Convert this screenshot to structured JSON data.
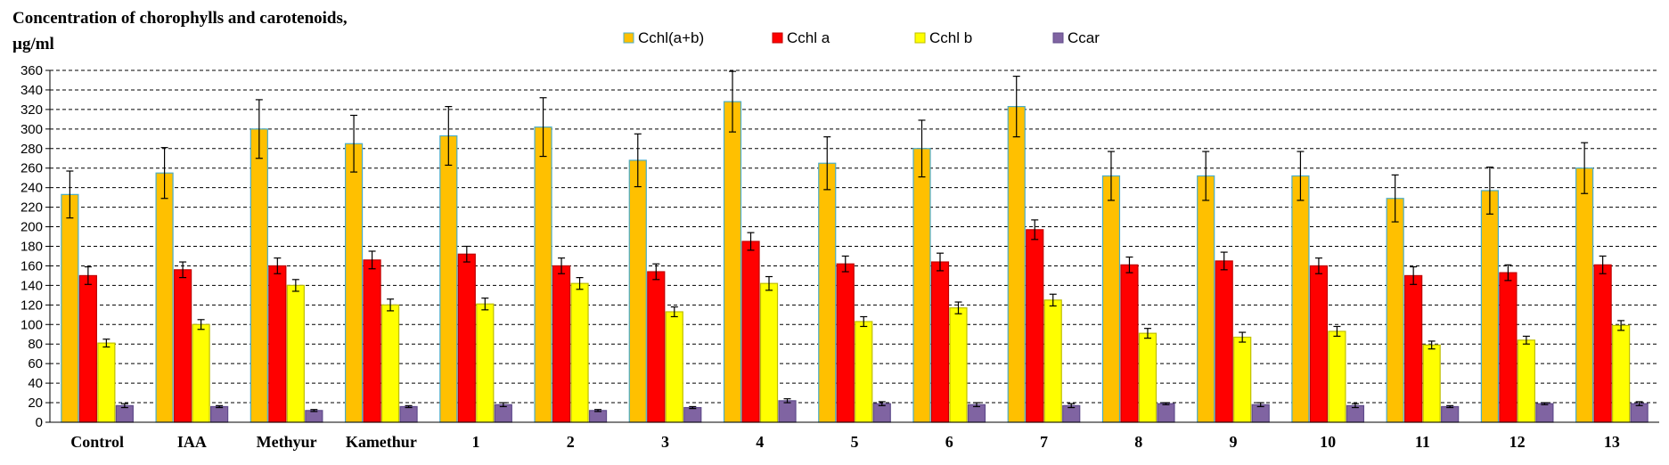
{
  "chart_data": {
    "type": "bar",
    "title_line1": "Concentration of chorophylls and carotenoids,",
    "title_line2": "µg/ml",
    "ylim": [
      0,
      360
    ],
    "ytick_step": 20,
    "grid": "horizontal dashed",
    "legend_placement": "top",
    "categories": [
      "Control",
      "IAA",
      "Methyur",
      "Kamethur",
      "1",
      "2",
      "3",
      "4",
      "5",
      "6",
      "7",
      "8",
      "9",
      "10",
      "11",
      "12",
      "13"
    ],
    "series": [
      {
        "name": "Cchl(a+b)",
        "color": "#FFC000",
        "edge": "#4BACC6",
        "values": [
          233,
          255,
          300,
          285,
          293,
          302,
          268,
          328,
          265,
          280,
          323,
          252,
          252,
          252,
          229,
          237,
          260
        ],
        "errors": [
          24,
          26,
          30,
          29,
          30,
          30,
          27,
          31,
          27,
          29,
          31,
          25,
          25,
          25,
          24,
          24,
          26
        ]
      },
      {
        "name": "Cchl a",
        "color": "#FF0000",
        "edge": "#C00000",
        "values": [
          150,
          156,
          160,
          166,
          172,
          160,
          154,
          185,
          162,
          164,
          197,
          161,
          165,
          160,
          150,
          153,
          161
        ],
        "errors": [
          9,
          8,
          8,
          9,
          8,
          8,
          8,
          9,
          8,
          9,
          10,
          8,
          9,
          8,
          9,
          8,
          9
        ]
      },
      {
        "name": "Cchl b",
        "color": "#FFFF00",
        "edge": "#BFBF00",
        "values": [
          81,
          100,
          140,
          120,
          121,
          142,
          113,
          142,
          103,
          117,
          125,
          91,
          87,
          93,
          79,
          84,
          99
        ],
        "errors": [
          4,
          5,
          6,
          6,
          6,
          6,
          5,
          7,
          5,
          6,
          6,
          5,
          5,
          5,
          4,
          4,
          5
        ]
      },
      {
        "name": "Ccar",
        "color": "#8064A2",
        "edge": "#5F4B8B",
        "values": [
          17,
          16,
          12,
          16,
          18,
          12,
          15,
          22,
          19,
          18,
          17,
          19,
          18,
          17,
          16,
          19,
          19
        ],
        "errors": [
          2,
          1,
          1,
          1,
          2,
          1,
          1,
          2,
          2,
          2,
          2,
          1,
          2,
          2,
          1,
          1,
          2
        ]
      }
    ]
  }
}
